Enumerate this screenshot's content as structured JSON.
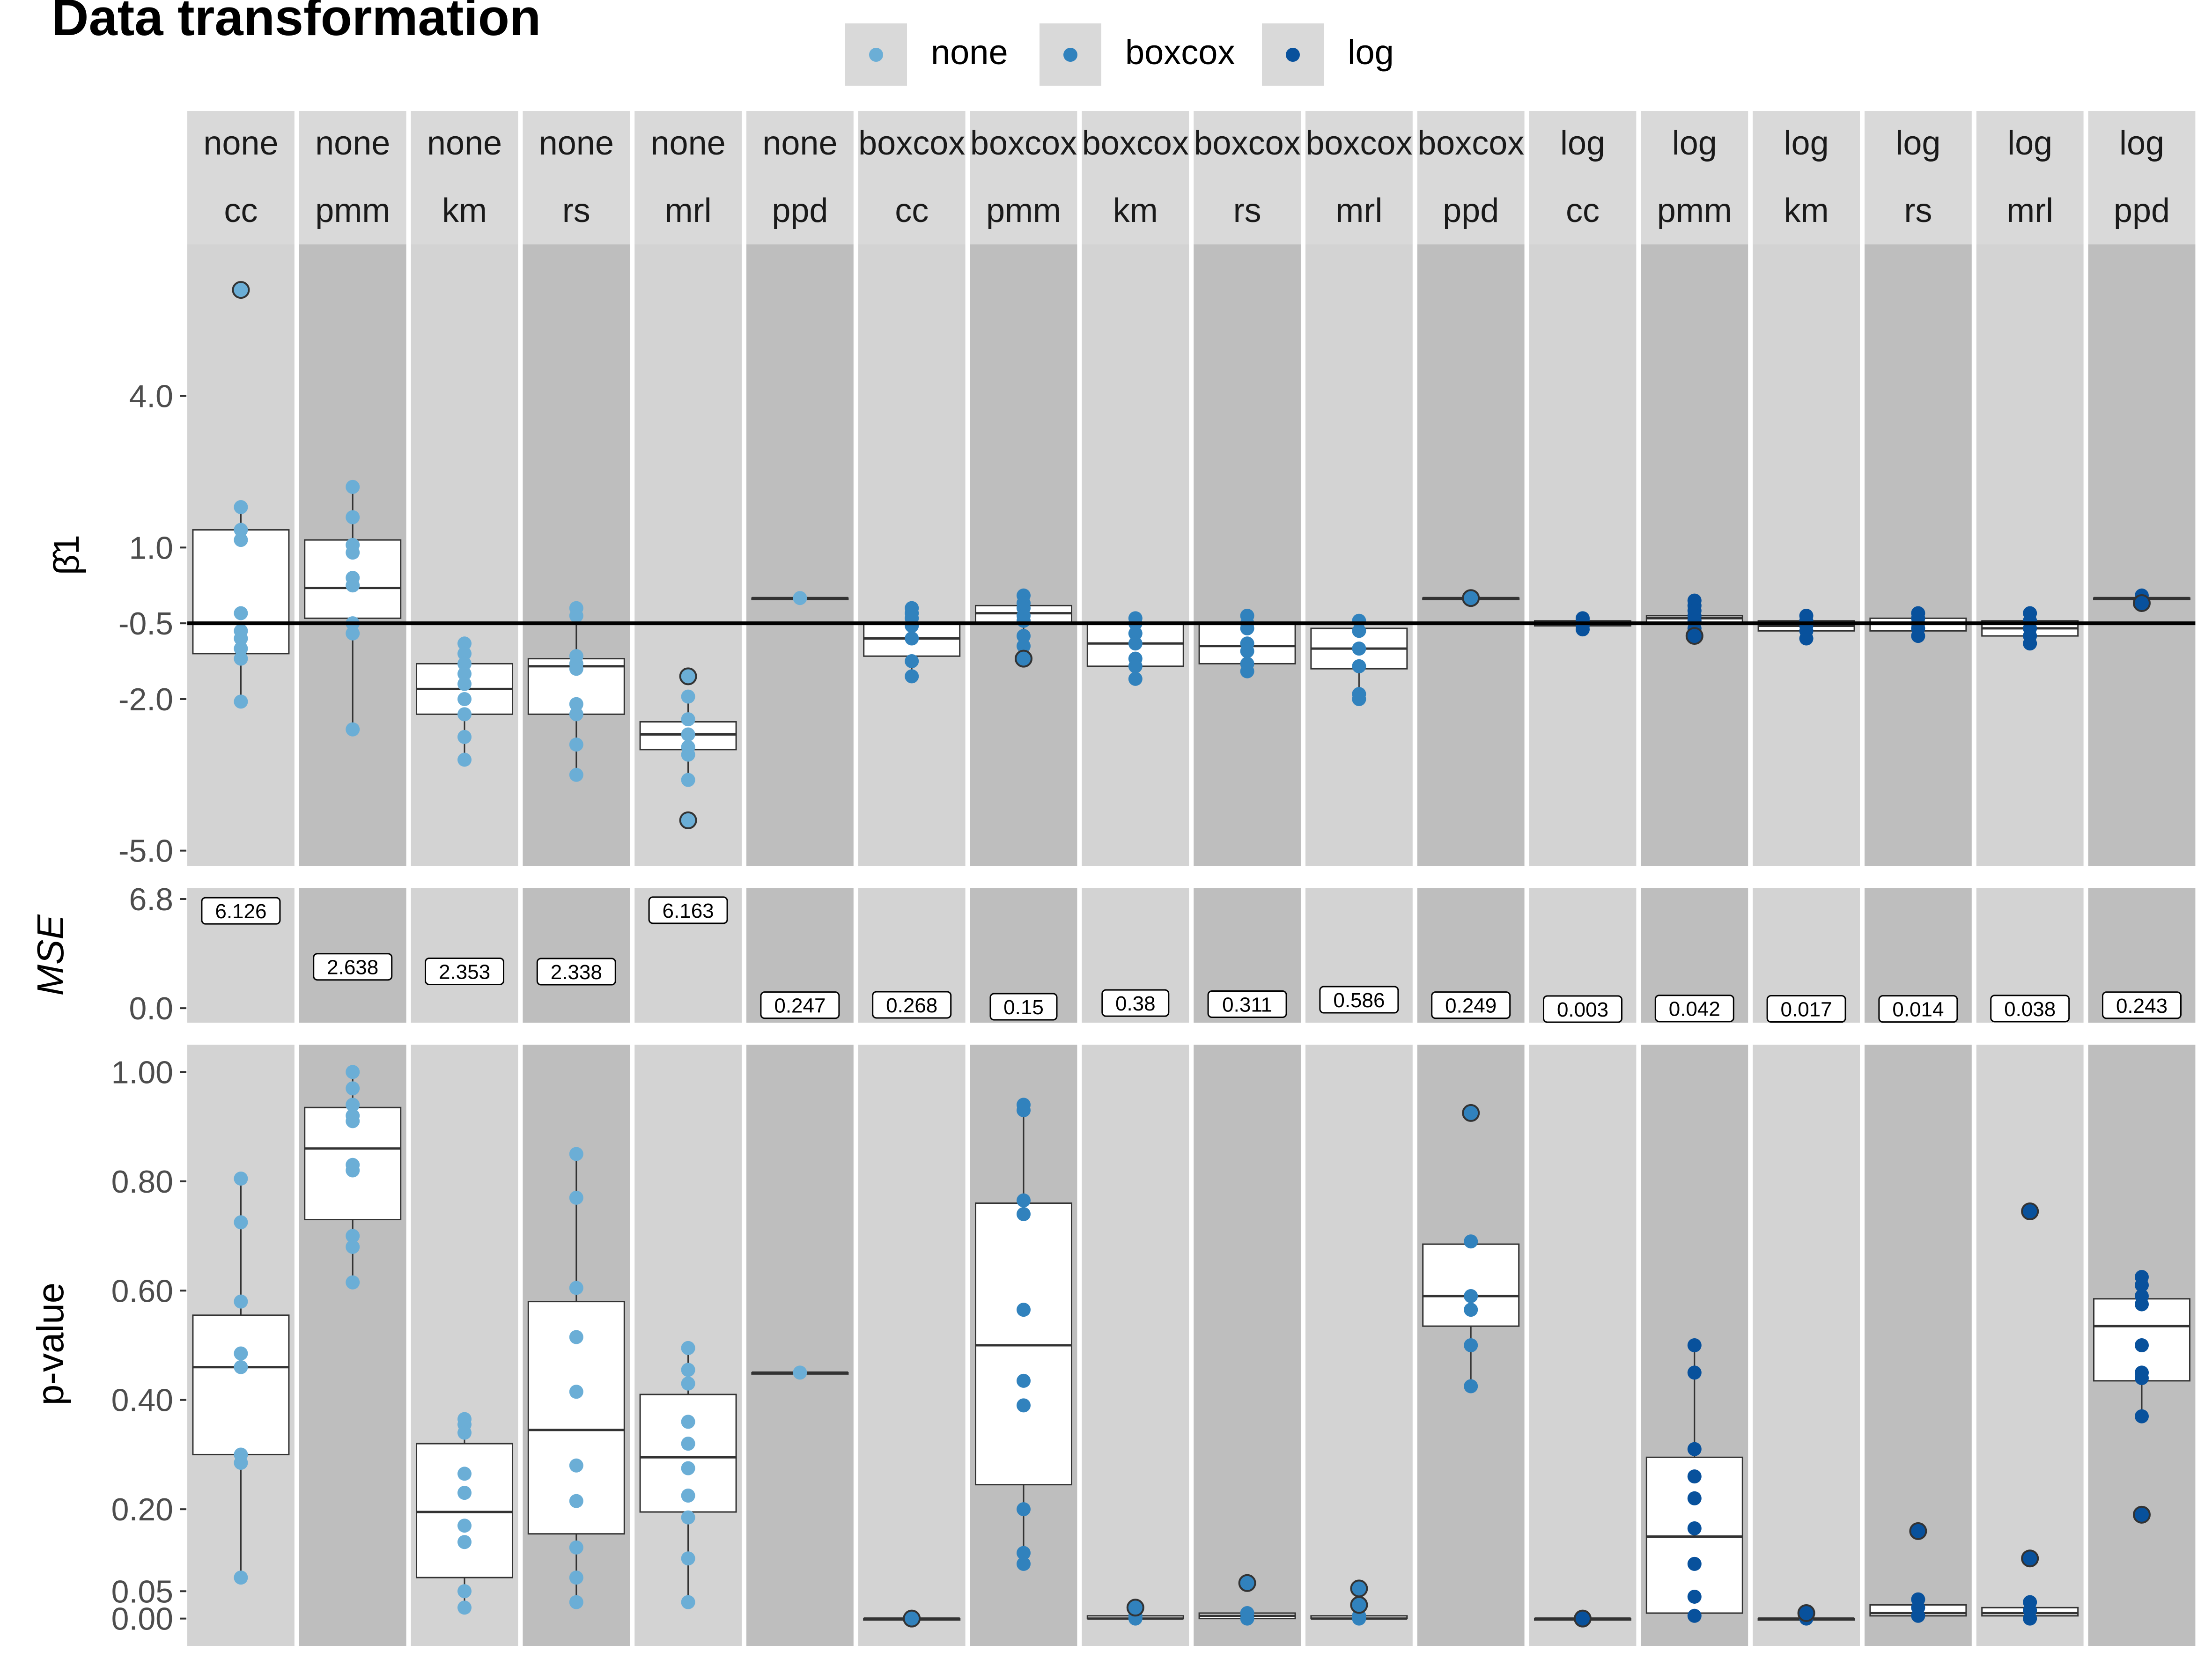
{
  "chart_data": {
    "type": "boxplot",
    "title": "Data transformation",
    "legend": {
      "placement": "top",
      "entries": [
        {
          "label": "none",
          "color": "#6BAED6"
        },
        {
          "label": "boxcox",
          "color": "#3182BD"
        },
        {
          "label": "log",
          "color": "#08519C"
        }
      ]
    },
    "facets": [
      {
        "transform": "none",
        "method": "cc"
      },
      {
        "transform": "none",
        "method": "pmm"
      },
      {
        "transform": "none",
        "method": "km"
      },
      {
        "transform": "none",
        "method": "rs"
      },
      {
        "transform": "none",
        "method": "mrl"
      },
      {
        "transform": "none",
        "method": "ppd"
      },
      {
        "transform": "boxcox",
        "method": "cc"
      },
      {
        "transform": "boxcox",
        "method": "pmm"
      },
      {
        "transform": "boxcox",
        "method": "km"
      },
      {
        "transform": "boxcox",
        "method": "rs"
      },
      {
        "transform": "boxcox",
        "method": "mrl"
      },
      {
        "transform": "boxcox",
        "method": "ppd"
      },
      {
        "transform": "log",
        "method": "cc"
      },
      {
        "transform": "log",
        "method": "pmm"
      },
      {
        "transform": "log",
        "method": "km"
      },
      {
        "transform": "log",
        "method": "rs"
      },
      {
        "transform": "log",
        "method": "mrl"
      },
      {
        "transform": "log",
        "method": "ppd"
      }
    ],
    "beta_panel": {
      "ylabel": "β̂1",
      "ticks": [
        "4.0",
        "1.0",
        "-0.5",
        "-2.0",
        "-5.0"
      ],
      "tick_values": [
        4.0,
        1.0,
        -0.5,
        -2.0,
        -5.0
      ],
      "ylim": [
        -5.3,
        7.0
      ],
      "reference_line": -0.5,
      "boxes": [
        {
          "q1": -1.1,
          "median": -0.5,
          "q3": 1.35,
          "wlo": -2.05,
          "whi": 1.8,
          "points": [
            1.8,
            1.35,
            1.15,
            -0.3,
            -0.65,
            -0.8,
            -1.0,
            -1.2,
            -2.05
          ],
          "outliers": [
            6.1
          ]
        },
        {
          "q1": -0.4,
          "median": 0.2,
          "q3": 1.15,
          "wlo": -2.6,
          "whi": 2.2,
          "points": [
            2.2,
            1.6,
            1.05,
            0.9,
            0.4,
            0.25,
            -0.5,
            -0.7,
            -2.6
          ],
          "outliers": []
        },
        {
          "q1": -2.3,
          "median": -1.8,
          "q3": -1.3,
          "wlo": -3.2,
          "whi": -0.9,
          "points": [
            -0.9,
            -1.1,
            -1.3,
            -1.5,
            -1.7,
            -2.0,
            -2.3,
            -2.75,
            -3.2
          ],
          "outliers": []
        },
        {
          "q1": -2.3,
          "median": -1.35,
          "q3": -1.2,
          "wlo": -3.5,
          "whi": -0.2,
          "points": [
            -0.2,
            -0.35,
            -1.15,
            -1.3,
            -1.4,
            -2.1,
            -2.3,
            -2.9,
            -3.5
          ],
          "outliers": []
        },
        {
          "q1": -3.0,
          "median": -2.7,
          "q3": -2.45,
          "wlo": -3.6,
          "whi": -1.95,
          "points": [
            -1.95,
            -2.4,
            -2.7,
            -2.95,
            -3.1,
            -3.6
          ],
          "outliers": [
            -1.55,
            -4.4
          ]
        },
        {
          "q1": 0.0,
          "median": 0.0,
          "q3": 0.0,
          "wlo": 0.0,
          "whi": 0.0,
          "points": [
            0.0
          ],
          "outliers": []
        },
        {
          "q1": -1.15,
          "median": -0.8,
          "q3": -0.5,
          "wlo": -1.55,
          "whi": -0.2,
          "points": [
            -0.2,
            -0.3,
            -0.4,
            -0.55,
            -0.8,
            -1.25,
            -1.55
          ],
          "outliers": []
        },
        {
          "q1": -0.5,
          "median": -0.3,
          "q3": -0.15,
          "wlo": -0.95,
          "whi": 0.05,
          "points": [
            0.05,
            -0.1,
            -0.2,
            -0.35,
            -0.45,
            -0.75,
            -0.95
          ],
          "outliers": [
            -1.2
          ]
        },
        {
          "q1": -1.35,
          "median": -0.9,
          "q3": -0.5,
          "wlo": -1.6,
          "whi": -0.4,
          "points": [
            -0.4,
            -0.5,
            -0.7,
            -0.9,
            -1.2,
            -1.35,
            -1.6
          ],
          "outliers": []
        },
        {
          "q1": -1.3,
          "median": -0.95,
          "q3": -0.5,
          "wlo": -1.45,
          "whi": -0.35,
          "points": [
            -0.35,
            -0.5,
            -0.6,
            -0.9,
            -1.05,
            -1.3,
            -1.45
          ],
          "outliers": []
        },
        {
          "q1": -1.4,
          "median": -1.0,
          "q3": -0.6,
          "wlo": -2.0,
          "whi": -0.45,
          "points": [
            -0.45,
            -0.65,
            -1.0,
            -1.35,
            -1.9,
            -2.0
          ],
          "outliers": []
        },
        {
          "q1": 0.0,
          "median": 0.0,
          "q3": 0.0,
          "wlo": 0.0,
          "whi": 0.0,
          "points": [],
          "outliers": [
            0.0
          ]
        },
        {
          "q1": -0.55,
          "median": -0.5,
          "q3": -0.45,
          "wlo": -0.62,
          "whi": -0.4,
          "points": [
            -0.4,
            -0.45,
            -0.5,
            -0.55,
            -0.62
          ],
          "outliers": []
        },
        {
          "q1": -0.5,
          "median": -0.4,
          "q3": -0.35,
          "wlo": -0.7,
          "whi": -0.05,
          "points": [
            -0.05,
            -0.15,
            -0.25,
            -0.35,
            -0.45,
            -0.6
          ],
          "outliers": [
            -0.75
          ]
        },
        {
          "q1": -0.65,
          "median": -0.55,
          "q3": -0.45,
          "wlo": -0.8,
          "whi": -0.35,
          "points": [
            -0.35,
            -0.45,
            -0.55,
            -0.65,
            -0.8
          ],
          "outliers": []
        },
        {
          "q1": -0.65,
          "median": -0.5,
          "q3": -0.4,
          "wlo": -0.75,
          "whi": -0.3,
          "points": [
            -0.3,
            -0.4,
            -0.5,
            -0.6,
            -0.75
          ],
          "outliers": []
        },
        {
          "q1": -0.75,
          "median": -0.6,
          "q3": -0.45,
          "wlo": -0.9,
          "whi": -0.3,
          "points": [
            -0.3,
            -0.45,
            -0.6,
            -0.75,
            -0.9
          ],
          "outliers": []
        },
        {
          "q1": 0.0,
          "median": 0.0,
          "q3": 0.0,
          "wlo": -0.1,
          "whi": 0.05,
          "points": [
            0.05,
            -0.05
          ],
          "outliers": [
            -0.1
          ]
        }
      ]
    },
    "mse_panel": {
      "ylabel": "MSE",
      "ticks": [
        "6.8",
        "0.0"
      ],
      "tick_values": [
        6.8,
        0.0
      ],
      "ylim": [
        -0.9,
        7.5
      ],
      "labels": [
        "6.126",
        "2.638",
        "2.353",
        "2.338",
        "6.163",
        "0.247",
        "0.268",
        "0.15",
        "0.38",
        "0.311",
        "0.586",
        "0.249",
        "0.003",
        "0.042",
        "0.017",
        "0.014",
        "0.038",
        "0.243"
      ],
      "values": [
        6.126,
        2.638,
        2.353,
        2.338,
        6.163,
        0.247,
        0.268,
        0.15,
        0.38,
        0.311,
        0.586,
        0.249,
        0.003,
        0.042,
        0.017,
        0.014,
        0.038,
        0.243
      ]
    },
    "pvalue_panel": {
      "ylabel": "p-value",
      "ticks": [
        "1.00",
        "0.80",
        "0.60",
        "0.40",
        "0.20",
        "0.05",
        "0.00"
      ],
      "tick_values": [
        1.0,
        0.8,
        0.6,
        0.4,
        0.2,
        0.05,
        0.0
      ],
      "ylim": [
        -0.05,
        1.05
      ],
      "boxes": [
        {
          "q1": 0.3,
          "median": 0.46,
          "q3": 0.555,
          "wlo": 0.075,
          "whi": 0.805,
          "points": [
            0.805,
            0.725,
            0.58,
            0.485,
            0.46,
            0.3,
            0.285,
            0.075
          ],
          "outliers": []
        },
        {
          "q1": 0.73,
          "median": 0.86,
          "q3": 0.935,
          "wlo": 0.615,
          "whi": 1.0,
          "points": [
            1.0,
            0.97,
            0.94,
            0.92,
            0.91,
            0.83,
            0.82,
            0.7,
            0.68,
            0.615
          ],
          "outliers": []
        },
        {
          "q1": 0.075,
          "median": 0.195,
          "q3": 0.32,
          "wlo": 0.01,
          "whi": 0.365,
          "points": [
            0.365,
            0.355,
            0.34,
            0.265,
            0.23,
            0.17,
            0.14,
            0.05,
            0.02
          ],
          "outliers": []
        },
        {
          "q1": 0.155,
          "median": 0.345,
          "q3": 0.58,
          "wlo": 0.03,
          "whi": 0.85,
          "points": [
            0.85,
            0.77,
            0.605,
            0.515,
            0.415,
            0.28,
            0.215,
            0.13,
            0.075,
            0.03
          ],
          "outliers": []
        },
        {
          "q1": 0.195,
          "median": 0.295,
          "q3": 0.41,
          "wlo": 0.03,
          "whi": 0.495,
          "points": [
            0.495,
            0.455,
            0.43,
            0.36,
            0.32,
            0.275,
            0.225,
            0.185,
            0.11,
            0.03
          ],
          "outliers": []
        },
        {
          "q1": 0.45,
          "median": 0.45,
          "q3": 0.45,
          "wlo": 0.45,
          "whi": 0.45,
          "points": [
            0.45
          ],
          "outliers": []
        },
        {
          "q1": 0.0,
          "median": 0.0,
          "q3": 0.0,
          "wlo": 0.0,
          "whi": 0.0,
          "points": [],
          "outliers": [
            0.0
          ]
        },
        {
          "q1": 0.245,
          "median": 0.5,
          "q3": 0.76,
          "wlo": 0.1,
          "whi": 0.94,
          "points": [
            0.94,
            0.93,
            0.765,
            0.74,
            0.565,
            0.435,
            0.39,
            0.2,
            0.12,
            0.1
          ],
          "outliers": []
        },
        {
          "q1": 0.0,
          "median": 0.0,
          "q3": 0.005,
          "wlo": 0.0,
          "whi": 0.01,
          "points": [
            0.005,
            0.0
          ],
          "outliers": [
            0.02
          ]
        },
        {
          "q1": 0.0,
          "median": 0.005,
          "q3": 0.01,
          "wlo": 0.0,
          "whi": 0.015,
          "points": [
            0.01,
            0.0
          ],
          "outliers": [
            0.065
          ]
        },
        {
          "q1": 0.0,
          "median": 0.0,
          "q3": 0.005,
          "wlo": 0.0,
          "whi": 0.01,
          "points": [
            0.005,
            0.0
          ],
          "outliers": [
            0.055,
            0.025
          ]
        },
        {
          "q1": 0.535,
          "median": 0.59,
          "q3": 0.685,
          "wlo": 0.425,
          "whi": 0.69,
          "points": [
            0.69,
            0.59,
            0.565,
            0.5,
            0.425
          ],
          "outliers": [
            0.925
          ]
        },
        {
          "q1": 0.0,
          "median": 0.0,
          "q3": 0.0,
          "wlo": 0.0,
          "whi": 0.0,
          "points": [],
          "outliers": [
            0.0
          ]
        },
        {
          "q1": 0.01,
          "median": 0.15,
          "q3": 0.295,
          "wlo": 0.0,
          "whi": 0.5,
          "points": [
            0.5,
            0.45,
            0.31,
            0.26,
            0.22,
            0.165,
            0.1,
            0.04,
            0.005
          ],
          "outliers": []
        },
        {
          "q1": 0.0,
          "median": 0.0,
          "q3": 0.0,
          "wlo": 0.0,
          "whi": 0.005,
          "points": [
            0.005,
            0.0
          ],
          "outliers": [
            0.01
          ]
        },
        {
          "q1": 0.005,
          "median": 0.01,
          "q3": 0.025,
          "wlo": 0.0,
          "whi": 0.035,
          "points": [
            0.035,
            0.02,
            0.005
          ],
          "outliers": [
            0.16
          ]
        },
        {
          "q1": 0.005,
          "median": 0.01,
          "q3": 0.02,
          "wlo": 0.0,
          "whi": 0.03,
          "points": [
            0.03,
            0.015,
            0.0
          ],
          "outliers": [
            0.745,
            0.11
          ]
        },
        {
          "q1": 0.435,
          "median": 0.535,
          "q3": 0.585,
          "wlo": 0.37,
          "whi": 0.625,
          "points": [
            0.625,
            0.61,
            0.59,
            0.575,
            0.5,
            0.45,
            0.44,
            0.37
          ],
          "outliers": [
            0.19
          ]
        }
      ]
    }
  }
}
